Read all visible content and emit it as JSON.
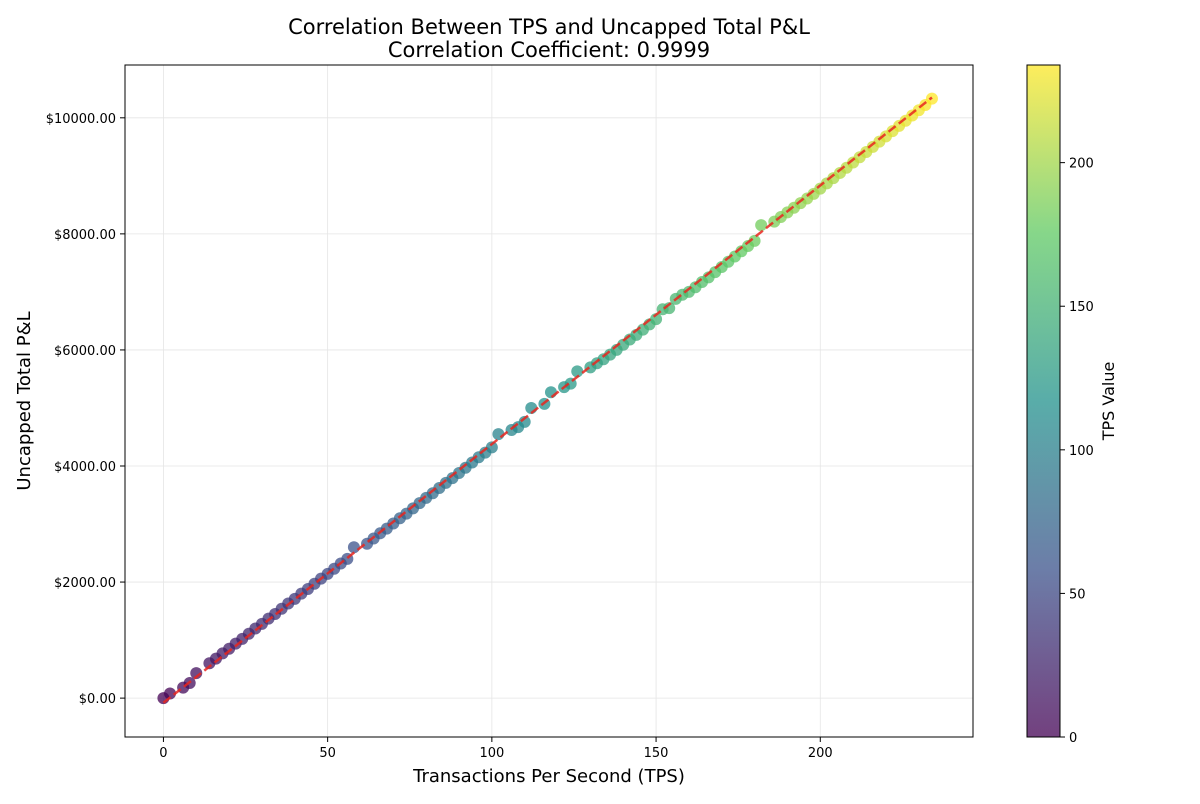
{
  "chart_data": {
    "type": "scatter",
    "title": "Correlation Between TPS and Uncapped Total P&L",
    "subtitle": "Correlation Coefficient: 0.9999",
    "x_label": "Transactions Per Second (TPS)",
    "y_label": "Uncapped Total P&L",
    "x": [
      0,
      2,
      6,
      8,
      10,
      14,
      16,
      18,
      20,
      22,
      24,
      26,
      28,
      30,
      32,
      34,
      36,
      38,
      40,
      42,
      44,
      46,
      48,
      50,
      52,
      54,
      56,
      58,
      62,
      64,
      66,
      68,
      70,
      72,
      74,
      76,
      78,
      80,
      82,
      84,
      86,
      88,
      90,
      92,
      94,
      96,
      98,
      100,
      102,
      106,
      108,
      110,
      112,
      116,
      118,
      122,
      124,
      126,
      130,
      132,
      134,
      136,
      138,
      140,
      142,
      144,
      146,
      148,
      150,
      152,
      154,
      156,
      158,
      160,
      162,
      164,
      166,
      168,
      170,
      172,
      174,
      176,
      178,
      180,
      182,
      186,
      188,
      190,
      192,
      194,
      196,
      198,
      200,
      202,
      204,
      206,
      208,
      210,
      212,
      214,
      216,
      218,
      220,
      222,
      224,
      226,
      228,
      230,
      232,
      234
    ],
    "values": [
      0,
      80,
      180,
      260,
      430,
      600,
      680,
      770,
      850,
      940,
      1020,
      1110,
      1200,
      1280,
      1370,
      1450,
      1540,
      1630,
      1710,
      1800,
      1880,
      1970,
      2060,
      2140,
      2230,
      2320,
      2400,
      2600,
      2660,
      2750,
      2840,
      2920,
      3010,
      3100,
      3180,
      3270,
      3360,
      3450,
      3530,
      3620,
      3710,
      3790,
      3880,
      3970,
      4060,
      4150,
      4230,
      4320,
      4550,
      4620,
      4670,
      4760,
      5000,
      5070,
      5270,
      5360,
      5420,
      5630,
      5700,
      5770,
      5840,
      5920,
      6000,
      6090,
      6180,
      6260,
      6350,
      6440,
      6530,
      6700,
      6720,
      6880,
      6950,
      7000,
      7080,
      7170,
      7250,
      7340,
      7430,
      7520,
      7610,
      7700,
      7790,
      7880,
      8150,
      8210,
      8290,
      8370,
      8450,
      8530,
      8610,
      8690,
      8780,
      8870,
      8960,
      9050,
      9140,
      9230,
      9320,
      9410,
      9500,
      9590,
      9680,
      9770,
      9860,
      9950,
      10040,
      10130,
      10220,
      10330
    ],
    "colormap": [
      "#440154",
      "#3b528b",
      "#21918c",
      "#5ec962",
      "#fde725"
    ],
    "clim": [
      0,
      234
    ],
    "colorbar_label": "TPS Value",
    "colorbar_ticks": [
      0,
      50,
      100,
      150,
      200
    ],
    "trendline": {
      "x": [
        0,
        234
      ],
      "y": [
        -80,
        10350
      ],
      "color": "#e8261f"
    },
    "xlim": [
      -11.7,
      246.5
    ],
    "ylim": [
      -670,
      10910
    ],
    "xticks": [
      0,
      50,
      100,
      150,
      200
    ],
    "yticks": [
      {
        "value": 0,
        "label": "$0.00"
      },
      {
        "value": 2000,
        "label": "$2000.00"
      },
      {
        "value": 4000,
        "label": "$4000.00"
      },
      {
        "value": 6000,
        "label": "$6000.00"
      },
      {
        "value": 8000,
        "label": "$8000.00"
      },
      {
        "value": 10000,
        "label": "$10000.00"
      }
    ],
    "grid": true
  }
}
